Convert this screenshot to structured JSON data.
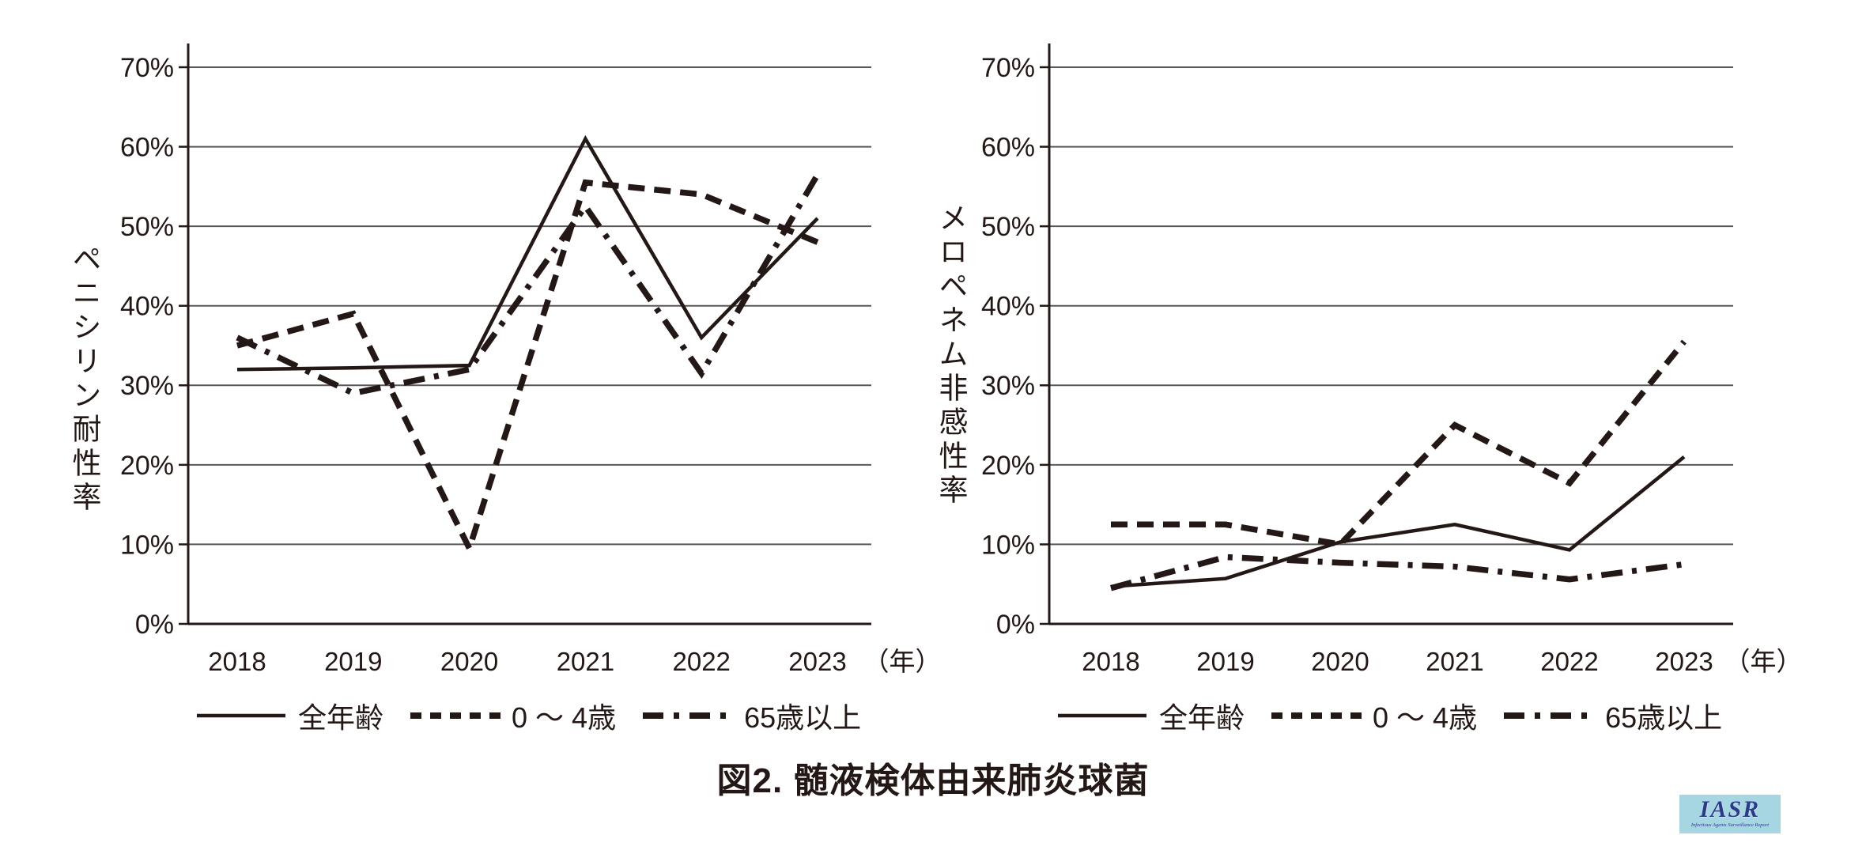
{
  "figure_title": "図2. 髄液検体由来肺炎球菌",
  "colors": {
    "ink": "#231815",
    "grid": "#595757",
    "logo_bg": "#a5d6e2",
    "logo_fg": "#2c3a8a"
  },
  "legend": {
    "items": [
      {
        "label": "全年齢",
        "style": "solid"
      },
      {
        "label": "0 〜 4歳",
        "style": "dashed"
      },
      {
        "label": "65歳以上",
        "style": "dashdot"
      }
    ]
  },
  "chart_data": [
    {
      "type": "line",
      "y_axis_title": "ペニシリン耐性率",
      "x_unit": "（年）",
      "ylim": [
        0,
        70
      ],
      "grid": true,
      "y_ticks": [
        "70%",
        "60%",
        "50%",
        "40%",
        "30%",
        "20%",
        "10%",
        "0%"
      ],
      "categories": [
        "2018",
        "2019",
        "2020",
        "2021",
        "2022",
        "2023"
      ],
      "series": [
        {
          "name": "全年齢",
          "style": "solid",
          "values": [
            32,
            32.2,
            32.5,
            61,
            36,
            51
          ]
        },
        {
          "name": "0 〜 4歳",
          "style": "dashed",
          "values": [
            35,
            39,
            9.5,
            55.5,
            54,
            48
          ]
        },
        {
          "name": "65歳以上",
          "style": "dashdot",
          "values": [
            36,
            29,
            32,
            52.5,
            31.5,
            56.5
          ]
        }
      ]
    },
    {
      "type": "line",
      "y_axis_title": "メロペネム非感性率",
      "x_unit": "（年）",
      "ylim": [
        0,
        70
      ],
      "grid": true,
      "y_ticks": [
        "70%",
        "60%",
        "50%",
        "40%",
        "30%",
        "20%",
        "10%",
        "0%"
      ],
      "categories": [
        "2018",
        "2019",
        "2020",
        "2021",
        "2022",
        "2023"
      ],
      "series": [
        {
          "name": "全年齢",
          "style": "solid",
          "values": [
            4.7,
            5.7,
            10.3,
            12.5,
            9.3,
            21
          ]
        },
        {
          "name": "0 〜 4歳",
          "style": "dashed",
          "values": [
            12.5,
            12.5,
            10,
            25,
            17.7,
            35.5
          ]
        },
        {
          "name": "65歳以上",
          "style": "dashdot",
          "values": [
            4.5,
            8.4,
            7.7,
            7.2,
            5.6,
            7.5
          ]
        }
      ]
    }
  ],
  "logo": {
    "text": "IASR",
    "subtext": "Infectious Agents Surveillance Report"
  }
}
